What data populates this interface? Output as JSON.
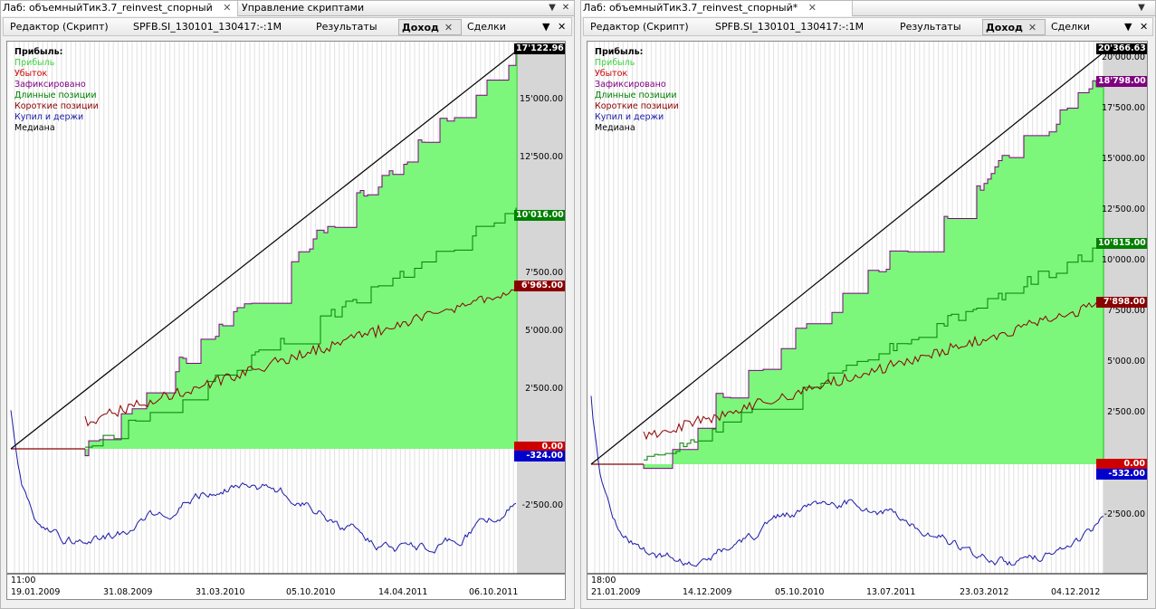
{
  "left_window": {
    "title_tabs": [
      "Лаб: объемныйТик3.7_reinvest_спорный",
      "Управление скриптами"
    ],
    "sub_tabs": [
      "Редактор (Скрипт)",
      "SPFB.SI_130101_130417:-:1M",
      "Результаты",
      "Доход",
      "Сделки"
    ],
    "legend": {
      "head": "Прибыль:",
      "items": [
        {
          "label": "Прибыль",
          "color": "#3fd33f"
        },
        {
          "label": "Убыток",
          "color": "#cc0000"
        },
        {
          "label": "Зафиксировано",
          "color": "#800080"
        },
        {
          "label": "Длинные позиции",
          "color": "#008000"
        },
        {
          "label": "Короткие позиции",
          "color": "#8b0000"
        },
        {
          "label": "Купил и держи",
          "color": "#1a1aa8"
        },
        {
          "label": "Медиана",
          "color": "#000000"
        }
      ]
    },
    "axis_labels": [
      "15'000.00",
      "12'500.00",
      "7'500.00",
      "5'000.00",
      "2'500.00",
      "-2'500.00"
    ],
    "badges": {
      "top": "17'122.96",
      "long": "10'016.00",
      "short": "6'965.00",
      "zero": "0.00",
      "bnh": "-324.00"
    },
    "time": "11:00",
    "dates": [
      "19.01.2009",
      "31.08.2009",
      "31.03.2010",
      "05.10.2010",
      "14.04.2011",
      "06.10.2011"
    ]
  },
  "right_window": {
    "title_tabs": [
      "Лаб: объемныйТик3.7_reinvest_спорный*"
    ],
    "sub_tabs": [
      "Редактор (Скрипт)",
      "SPFB.SI_130101_130417:-:1M",
      "Результаты",
      "Доход",
      "Сделки"
    ],
    "legend": {
      "head": "Прибыль:",
      "items": [
        {
          "label": "Прибыль",
          "color": "#3fd33f"
        },
        {
          "label": "Убыток",
          "color": "#cc0000"
        },
        {
          "label": "Зафиксировано",
          "color": "#800080"
        },
        {
          "label": "Длинные позиции",
          "color": "#008000"
        },
        {
          "label": "Короткие позиции",
          "color": "#8b0000"
        },
        {
          "label": "Купил и держи",
          "color": "#1a1aa8"
        },
        {
          "label": "Медиана",
          "color": "#000000"
        }
      ]
    },
    "axis_labels": [
      "20'000.00",
      "17'500.00",
      "15'000.00",
      "12'500.00",
      "10'000.00",
      "7'500.00",
      "5'000.00",
      "2'500.00",
      "-2'500.00"
    ],
    "badges": {
      "top": "20'366.63",
      "closed": "18'798.00",
      "long": "10'815.00",
      "short": "7'898.00",
      "zero": "0.00",
      "bnh": "-532.00"
    },
    "time": "18:00",
    "dates": [
      "21.01.2009",
      "14.12.2009",
      "05.10.2010",
      "13.07.2011",
      "23.03.2012",
      "04.12.2012"
    ]
  },
  "colors": {
    "profit_fill": "#7cf77c",
    "profit_line": "#3fd33f",
    "closed": "#800080",
    "long": "#008000",
    "short": "#8b0000",
    "bnh": "#1a1aa8",
    "median": "#000000",
    "badge_top": "#000000",
    "badge_long": "#008000",
    "badge_short": "#8b0000",
    "badge_closed": "#800080",
    "badge_zero": "#cc0000",
    "badge_bnh": "#0000cc"
  }
}
